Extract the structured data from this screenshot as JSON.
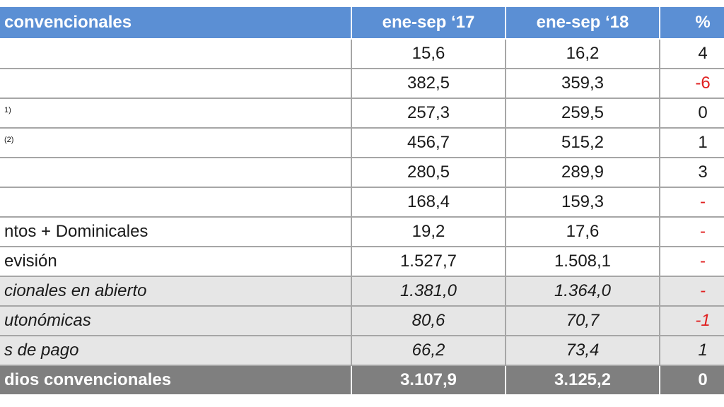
{
  "header": {
    "label": "convencionales",
    "col1": "ene-sep ‘17",
    "col2": "ene-sep ‘18",
    "col3": "% "
  },
  "rows": [
    {
      "label": "",
      "sup": "",
      "v1": "15,6",
      "v2": "16,2",
      "pct": "4",
      "neg": false
    },
    {
      "label": "",
      "sup": "",
      "v1": "382,5",
      "v2": "359,3",
      "pct": "-6",
      "neg": true
    },
    {
      "label": "",
      "sup": "1)",
      "v1": "257,3",
      "v2": "259,5",
      "pct": "0",
      "neg": false
    },
    {
      "label": "",
      "sup": "(2)",
      "v1": "456,7",
      "v2": "515,2",
      "pct": "1",
      "neg": false
    },
    {
      "label": "",
      "sup": "",
      "v1": "280,5",
      "v2": "289,9",
      "pct": "3",
      "neg": false
    },
    {
      "label": "",
      "sup": "",
      "v1": "168,4",
      "v2": "159,3",
      "pct": "-",
      "neg": true
    },
    {
      "label": "ntos + Dominicales",
      "sup": "",
      "v1": "19,2",
      "v2": "17,6",
      "pct": "-",
      "neg": true
    },
    {
      "label": "evisión",
      "sup": "",
      "v1": "1.527,7",
      "v2": "1.508,1",
      "pct": "-",
      "neg": true
    }
  ],
  "subrows": [
    {
      "label": "cionales en abierto",
      "v1": "1.381,0",
      "v2": "1.364,0",
      "pct": "-",
      "neg": true
    },
    {
      "label": "utonómicas",
      "v1": "80,6",
      "v2": "70,7",
      "pct": "-1",
      "neg": true
    },
    {
      "label": "s de pago",
      "v1": "66,2",
      "v2": "73,4",
      "pct": "1",
      "neg": false
    }
  ],
  "total": {
    "label": "dios convencionales",
    "v1": "3.107,9",
    "v2": "3.125,2",
    "pct": "0"
  },
  "colors": {
    "header_bg": "#5b8fd4",
    "sub_bg": "#e6e6e6",
    "total_bg": "#7f7f7f",
    "negative": "#e02020"
  }
}
